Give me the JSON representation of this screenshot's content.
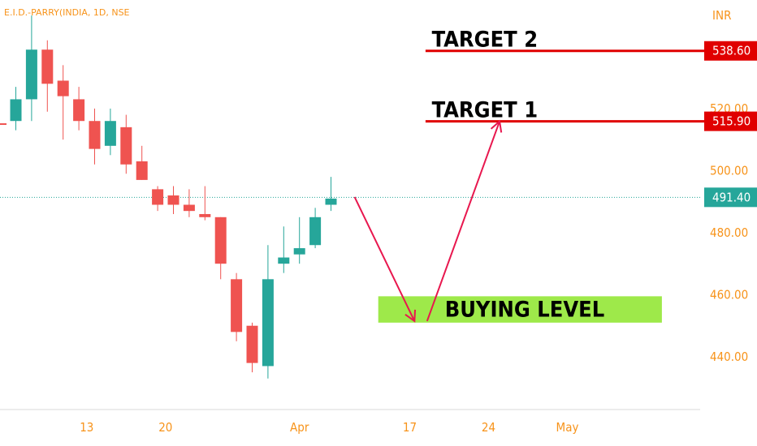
{
  "header": {
    "symbol": "E.I.D.-PARRY(INDIA, 1D, NSE",
    "currency": "INR"
  },
  "chart_data": {
    "type": "candlestick",
    "ylim": [
      423,
      555
    ],
    "y_ticks": [
      "440.00",
      "460.00",
      "480.00",
      "500.00",
      "520.00"
    ],
    "x_ticks": [
      {
        "label": "13",
        "slot": 4.5
      },
      {
        "label": "20",
        "slot": 9.5
      },
      {
        "label": "Apr",
        "slot": 18
      },
      {
        "label": "17",
        "slot": 25
      },
      {
        "label": "24",
        "slot": 30
      },
      {
        "label": "May",
        "slot": 35
      }
    ],
    "candles": [
      {
        "o": 516,
        "h": 527,
        "l": 513,
        "c": 523
      },
      {
        "o": 523,
        "h": 550,
        "l": 516,
        "c": 539
      },
      {
        "o": 539,
        "h": 542,
        "l": 519,
        "c": 528
      },
      {
        "o": 529,
        "h": 534,
        "l": 510,
        "c": 524
      },
      {
        "o": 523,
        "h": 527,
        "l": 513,
        "c": 516
      },
      {
        "o": 516,
        "h": 520,
        "l": 502,
        "c": 507
      },
      {
        "o": 508,
        "h": 520,
        "l": 505,
        "c": 516
      },
      {
        "o": 514,
        "h": 518,
        "l": 499,
        "c": 502
      },
      {
        "o": 503,
        "h": 508,
        "l": 497,
        "c": 497
      },
      {
        "o": 494,
        "h": 495,
        "l": 487,
        "c": 489
      },
      {
        "o": 492,
        "h": 495,
        "l": 486,
        "c": 489
      },
      {
        "o": 489,
        "h": 494,
        "l": 485,
        "c": 487
      },
      {
        "o": 486,
        "h": 495,
        "l": 484,
        "c": 485
      },
      {
        "o": 485,
        "h": 485,
        "l": 465,
        "c": 470
      },
      {
        "o": 465,
        "h": 467,
        "l": 445,
        "c": 448
      },
      {
        "o": 450,
        "h": 451,
        "l": 435,
        "c": 438
      },
      {
        "o": 437,
        "h": 476,
        "l": 433,
        "c": 465
      },
      {
        "o": 470,
        "h": 482,
        "l": 467,
        "c": 472
      },
      {
        "o": 473,
        "h": 485,
        "l": 470,
        "c": 475
      },
      {
        "o": 476,
        "h": 488,
        "l": 475,
        "c": 485
      },
      {
        "o": 489,
        "h": 498,
        "l": 487,
        "c": 491
      }
    ],
    "last_price": {
      "value": 491.4,
      "label": "491.40"
    },
    "targets": [
      {
        "name": "TARGET 2",
        "value": 538.6,
        "label": "538.60"
      },
      {
        "name": "TARGET 1",
        "value": 515.9,
        "label": "515.90"
      }
    ],
    "prev_close_marker": 515.0,
    "buying_zone": {
      "label": "BUYING LEVEL",
      "low": 451.0,
      "high": 459.5,
      "slot_from": 23.0,
      "slot_to": 41.0
    },
    "projection_path": [
      {
        "slot": 21.5,
        "value": 491.5
      },
      {
        "slot": 25.3,
        "value": 451.5
      },
      {
        "slot": 26.1,
        "value": 451.5
      },
      {
        "slot": 30.7,
        "value": 515.9
      }
    ],
    "colors": {
      "up": "#26a69a",
      "down": "#ef5350",
      "target": "#e00000",
      "arrow": "#e8174e",
      "zone": "#9ee94a",
      "axis": "#f7931a"
    }
  }
}
